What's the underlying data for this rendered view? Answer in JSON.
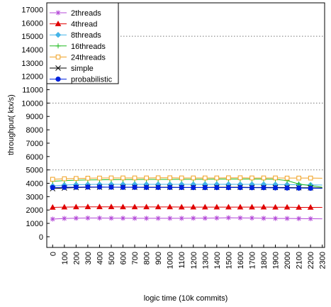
{
  "chart_data": {
    "type": "line",
    "title": "",
    "xlabel": "logic time (10k commits)",
    "ylabel": "throughput( ktx/s)",
    "ylim": [
      -800,
      17500
    ],
    "xlim": [
      -50,
      2320
    ],
    "x_ticks": [
      0,
      100,
      200,
      300,
      400,
      500,
      600,
      700,
      800,
      900,
      1000,
      1100,
      1200,
      1300,
      1400,
      1500,
      1600,
      1700,
      1800,
      1900,
      2000,
      2100,
      2200,
      2300
    ],
    "y_ticks": [
      0,
      1000,
      2000,
      3000,
      4000,
      5000,
      6000,
      7000,
      8000,
      9000,
      10000,
      11000,
      12000,
      13000,
      14000,
      15000,
      16000,
      17000
    ],
    "grid": {
      "y_dotted_at": [
        5000,
        10000,
        15000
      ]
    },
    "legend": "top-left",
    "x": [
      0,
      100,
      200,
      300,
      400,
      500,
      600,
      700,
      800,
      900,
      1000,
      1100,
      1200,
      1300,
      1400,
      1500,
      1600,
      1700,
      1800,
      1900,
      2000,
      2100,
      2200,
      2300
    ],
    "series": [
      {
        "name": "2threads",
        "color": "#b44ad8",
        "marker": "asterisk",
        "values": [
          1320,
          1370,
          1390,
          1400,
          1400,
          1390,
          1390,
          1380,
          1380,
          1380,
          1380,
          1380,
          1390,
          1390,
          1400,
          1420,
          1410,
          1400,
          1380,
          1370,
          1370,
          1360,
          1350,
          1340
        ]
      },
      {
        "name": "4thread",
        "color": "#e00000",
        "marker": "triangle",
        "values": [
          2200,
          2220,
          2230,
          2240,
          2240,
          2240,
          2230,
          2230,
          2230,
          2230,
          2230,
          2220,
          2220,
          2220,
          2220,
          2220,
          2220,
          2220,
          2220,
          2210,
          2210,
          2200,
          2200,
          2200
        ]
      },
      {
        "name": "8threads",
        "color": "#44b4e8",
        "marker": "diamond",
        "values": [
          3800,
          3870,
          3900,
          3910,
          3920,
          3920,
          3920,
          3920,
          3920,
          3920,
          3920,
          3920,
          3920,
          3920,
          3920,
          3930,
          3920,
          3920,
          3920,
          3910,
          3900,
          3890,
          3880,
          3870
        ]
      },
      {
        "name": "16threads",
        "color": "#22bb22",
        "marker": "plus",
        "values": [
          4150,
          4200,
          4230,
          4250,
          4260,
          4270,
          4280,
          4280,
          4290,
          4290,
          4290,
          4300,
          4300,
          4300,
          4310,
          4320,
          4320,
          4320,
          4320,
          4300,
          4200,
          3950,
          3820,
          3700
        ]
      },
      {
        "name": "24threads",
        "color": "#f0a020",
        "marker": "square",
        "values": [
          4300,
          4340,
          4360,
          4380,
          4390,
          4400,
          4400,
          4400,
          4400,
          4410,
          4410,
          4400,
          4400,
          4400,
          4400,
          4410,
          4410,
          4400,
          4400,
          4400,
          4390,
          4390,
          4390,
          4380
        ]
      },
      {
        "name": "simple",
        "color": "#000000",
        "marker": "x",
        "values": [
          3600,
          3650,
          3680,
          3700,
          3710,
          3710,
          3700,
          3700,
          3700,
          3700,
          3700,
          3690,
          3690,
          3690,
          3700,
          3700,
          3700,
          3690,
          3690,
          3690,
          3680,
          3670,
          3660,
          3650
        ]
      },
      {
        "name": "probabilistic",
        "color": "#0022dd",
        "marker": "circle",
        "values": [
          3680,
          3700,
          3710,
          3720,
          3720,
          3710,
          3700,
          3700,
          3690,
          3690,
          3690,
          3690,
          3680,
          3680,
          3680,
          3680,
          3680,
          3670,
          3670,
          3660,
          3650,
          3640,
          3630,
          3620
        ]
      }
    ]
  }
}
